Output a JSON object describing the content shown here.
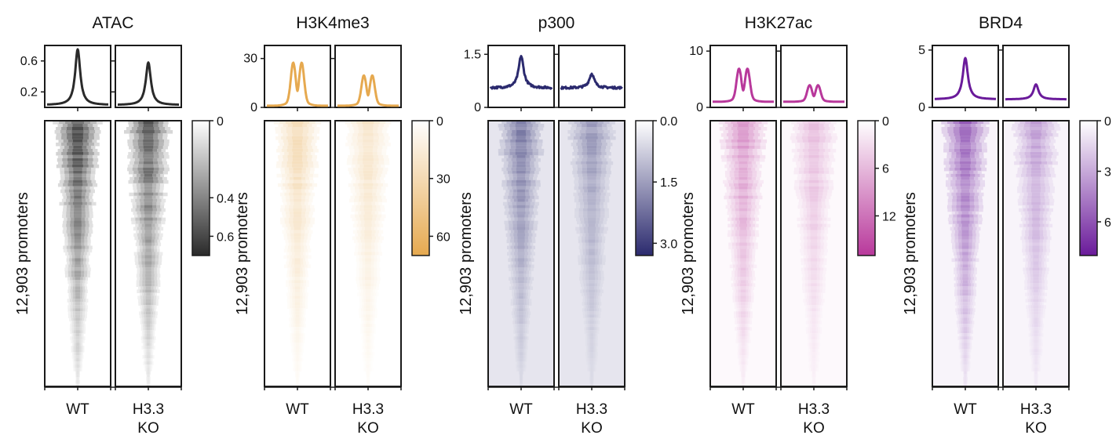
{
  "figure": {
    "ylabel": "12,903 promoters",
    "conditions": [
      "WT",
      "H3.3\nKO"
    ]
  },
  "chart_data": [
    {
      "type": "heatmap",
      "title": "ATAC",
      "color": "#2a2a2a",
      "profile_ylim": [
        0,
        0.8
      ],
      "profile_yticks": [
        "0.6",
        "0.2"
      ],
      "profile_ytick_values": [
        0.6,
        0.2
      ],
      "profile_shape": "single",
      "profile_peaks": {
        "WT": 0.75,
        "H3.3 KO": 0.58
      },
      "profile_base": 0.03,
      "heat_scale": [
        0,
        0.7
      ],
      "colorbar_ticks": [
        "0",
        "0.4",
        "0.6"
      ],
      "colorbar_tick_values": [
        0,
        0.4,
        0.6
      ],
      "heat_intensity": {
        "WT": 0.95,
        "H3.3 KO": 0.85
      },
      "heat_background": 0.0
    },
    {
      "type": "heatmap",
      "title": "H3K4me3",
      "color": "#e6a94f",
      "profile_ylim": [
        0,
        38
      ],
      "profile_yticks": [
        "30",
        "0"
      ],
      "profile_ytick_values": [
        30,
        0
      ],
      "profile_shape": "double",
      "profile_peaks": {
        "WT": 28,
        "H3.3 KO": 20
      },
      "profile_base": 1,
      "heat_scale": [
        0,
        70
      ],
      "colorbar_ticks": [
        "0",
        "30",
        "60"
      ],
      "colorbar_tick_values": [
        0,
        30,
        60
      ],
      "heat_intensity": {
        "WT": 0.45,
        "H3.3 KO": 0.35
      },
      "heat_background": 0.0
    },
    {
      "type": "heatmap",
      "title": "p300",
      "color": "#2b2a6e",
      "profile_ylim": [
        0,
        1.75
      ],
      "profile_yticks": [
        "1.5",
        "0"
      ],
      "profile_ytick_values": [
        1.5,
        0
      ],
      "profile_shape": "single",
      "profile_peaks": {
        "WT": 1.45,
        "H3.3 KO": 0.95
      },
      "profile_base": 0.55,
      "heat_scale": [
        0,
        3.3
      ],
      "colorbar_ticks": [
        "0.0",
        "1.5",
        "3.0"
      ],
      "colorbar_tick_values": [
        0,
        1.5,
        3.0
      ],
      "heat_intensity": {
        "WT": 0.55,
        "H3.3 KO": 0.4
      },
      "heat_background": 0.12
    },
    {
      "type": "heatmap",
      "title": "H3K27ac",
      "color": "#b8389b",
      "profile_ylim": [
        0,
        11
      ],
      "profile_yticks": [
        "10",
        "0"
      ],
      "profile_ytick_values": [
        10,
        0
      ],
      "profile_shape": "double",
      "profile_peaks": {
        "WT": 7,
        "H3.3 KO": 4
      },
      "profile_base": 1,
      "heat_scale": [
        0,
        17
      ],
      "colorbar_ticks": [
        "0",
        "6",
        "12"
      ],
      "colorbar_tick_values": [
        0,
        6,
        12
      ],
      "heat_intensity": {
        "WT": 0.55,
        "H3.3 KO": 0.35
      },
      "heat_background": 0.03
    },
    {
      "type": "heatmap",
      "title": "BRD4",
      "color": "#6a1a9a",
      "profile_ylim": [
        0,
        5.4
      ],
      "profile_yticks": [
        "5",
        "0"
      ],
      "profile_ytick_values": [
        5,
        0
      ],
      "profile_shape": "single",
      "profile_peaks": {
        "WT": 4.3,
        "H3.3 KO": 2.0
      },
      "profile_base": 0.7,
      "heat_scale": [
        0,
        8
      ],
      "colorbar_ticks": [
        "0",
        "3",
        "6"
      ],
      "colorbar_tick_values": [
        0,
        3,
        6
      ],
      "heat_intensity": {
        "WT": 0.7,
        "H3.3 KO": 0.42
      },
      "heat_background": 0.05
    }
  ]
}
